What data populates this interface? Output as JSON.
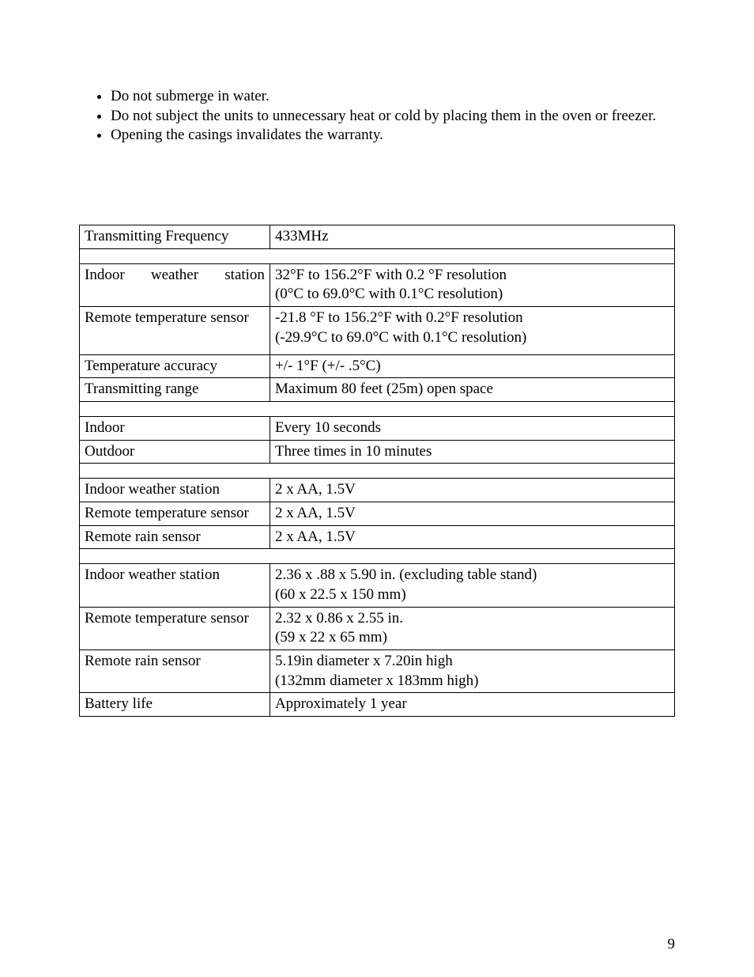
{
  "bullets": [
    "Do not submerge in water.",
    "Do not subject the units to unnecessary heat or cold by placing them in the oven or freezer.",
    "Opening the casings invalidates the warranty."
  ],
  "table": {
    "rows": [
      {
        "label_html": "Transmitting Frequency",
        "value": "433MHz"
      },
      {
        "spacer": true
      },
      {
        "label_justify": [
          "Indoor",
          "weather",
          "station"
        ],
        "value": "32°F to 156.2°F with 0.2 °F resolution\n(0°C to 69.0°C with 0.1°C resolution)"
      },
      {
        "label": "Remote temperature sensor",
        "value": "-21.8 °F to 156.2°F with 0.2°F resolution\n(-29.9°C to 69.0°C with 0.1°C resolution)",
        "extra_pad": true
      },
      {
        "label": "Temperature accuracy",
        "value": "+/- 1°F    (+/- .5°C)"
      },
      {
        "label": "Transmitting range",
        "value": "Maximum 80 feet (25m) open space"
      },
      {
        "spacer": true
      },
      {
        "label": "Indoor",
        "value": "Every 10 seconds"
      },
      {
        "label": "Outdoor",
        "value": "Three times in 10 minutes"
      },
      {
        "spacer": true
      },
      {
        "label": "Indoor weather station",
        "value": "2 x AA, 1.5V"
      },
      {
        "label": "Remote temperature sensor",
        "value": "2 x AA, 1.5V"
      },
      {
        "label": "Remote rain sensor",
        "value": "2 x AA, 1.5V"
      },
      {
        "spacer": true
      },
      {
        "label": "Indoor weather station",
        "value": "2.36 x .88 x 5.90 in. (excluding table stand)\n(60 x 22.5 x 150 mm)"
      },
      {
        "label": "Remote temperature sensor",
        "value": "2.32 x 0.86 x 2.55 in.\n(59 x 22 x 65 mm)"
      },
      {
        "label": "Remote rain sensor",
        "value": "5.19in diameter x 7.20in high\n(132mm diameter x 183mm high)"
      },
      {
        "label": "Battery life",
        "value": "Approximately 1 year"
      }
    ]
  },
  "page_number": "9",
  "colors": {
    "text": "#000000",
    "background": "#ffffff",
    "border": "#000000"
  },
  "typography": {
    "font_family": "Times New Roman",
    "body_fontsize_pt": 14
  }
}
